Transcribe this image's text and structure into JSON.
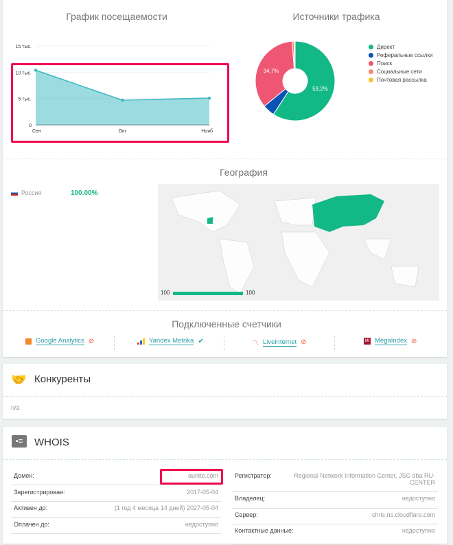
{
  "traffic": {
    "title": "График посещаемости"
  },
  "sources": {
    "title": "Источники трафика"
  },
  "chart_data": [
    {
      "type": "area",
      "title": "График посещаемости",
      "categories": [
        "Сен",
        "Окт",
        "Нояб"
      ],
      "values": [
        10400,
        4700,
        5100
      ],
      "yticks": [
        "0",
        "5 тыс.",
        "10 тыс.",
        "15 тыс."
      ],
      "ylim": [
        0,
        15000
      ],
      "color": "#3ab8c2",
      "grid": true
    },
    {
      "type": "pie",
      "title": "Источники трафика",
      "labels": [
        "Директ",
        "Реферальные ссылки",
        "Поиск",
        "Социальные сети",
        "Почтовая рассылка"
      ],
      "values": [
        59.2,
        4.9,
        34.7,
        0.8,
        0.4
      ],
      "colors": [
        "#13b887",
        "#0a52b5",
        "#ef5674",
        "#f78a6c",
        "#f6c531"
      ],
      "data_labels": [
        "59,2%",
        "",
        "34,7%",
        "",
        ""
      ],
      "legend": "right"
    }
  ],
  "geo": {
    "title": "География",
    "country": "Россия",
    "percent": "100.00%",
    "scale_min": "100",
    "scale_max": "100"
  },
  "counters": {
    "title": "Подключенные счетчики",
    "items": [
      {
        "label": "Google Analytics",
        "status": "off"
      },
      {
        "label": "Yandex Metrika",
        "status": "on"
      },
      {
        "label": "Liveinternet",
        "status": "off"
      },
      {
        "label": "MegaIndex",
        "status": "off"
      }
    ]
  },
  "competitors": {
    "title": "Конкуренты",
    "value": "n/a"
  },
  "whois": {
    "title": "WHOIS",
    "left": [
      {
        "k": "Домен:",
        "v": "aunite.com"
      },
      {
        "k": "Зарегистрирован:",
        "v": "2017-05-04"
      },
      {
        "k": "Активен до:",
        "v": "(1 год 4 месяца 14 дней) 2027-05-04"
      },
      {
        "k": "Оплачен до:",
        "v": "недоступно"
      }
    ],
    "right": [
      {
        "k": "Регистратор:",
        "v": "Regional Network Information Center, JSC dba RU-CENTER"
      },
      {
        "k": "Владелец:",
        "v": "недоступно"
      },
      {
        "k": "Сервер:",
        "v": "chris.ns.cloudflare.com"
      },
      {
        "k": "Контактные данные:",
        "v": "недоступно"
      }
    ]
  }
}
